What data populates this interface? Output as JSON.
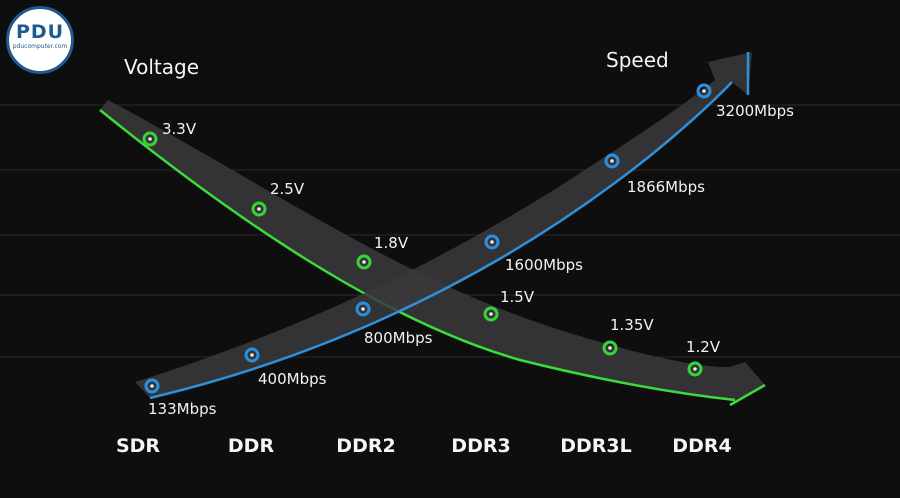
{
  "logo": {
    "text": "PDU",
    "subtext": "pducomputer.com"
  },
  "chart_data": {
    "type": "line",
    "categories": [
      "SDR",
      "DDR",
      "DDR2",
      "DDR3",
      "DDR3L",
      "DDR4"
    ],
    "series": [
      {
        "name": "Voltage",
        "color": "#36d33a",
        "points": [
          {
            "category": "SDR",
            "value": 3.3,
            "label": "3.3V"
          },
          {
            "category": "DDR",
            "value": 2.5,
            "label": "2.5V"
          },
          {
            "category": "DDR2",
            "value": 1.8,
            "label": "1.8V"
          },
          {
            "category": "DDR3",
            "value": 1.5,
            "label": "1.5V"
          },
          {
            "category": "DDR3L",
            "value": 1.35,
            "label": "1.35V"
          },
          {
            "category": "DDR4",
            "value": 1.2,
            "label": "1.2V"
          }
        ]
      },
      {
        "name": "Speed",
        "color": "#2b8fe0",
        "points": [
          {
            "category": "SDR",
            "value": 133,
            "label": "133Mbps"
          },
          {
            "category": "DDR",
            "value": 400,
            "label": "400Mbps"
          },
          {
            "category": "DDR2",
            "value": 800,
            "label": "800Mbps"
          },
          {
            "category": "DDR3",
            "value": 1600,
            "label": "1600Mbps"
          },
          {
            "category": "DDR3L",
            "value": 1866,
            "label": "1866Mbps"
          },
          {
            "category": "DDR4",
            "value": 3200,
            "label": "3200Mbps"
          }
        ]
      }
    ],
    "grid": true,
    "legend": "none"
  }
}
